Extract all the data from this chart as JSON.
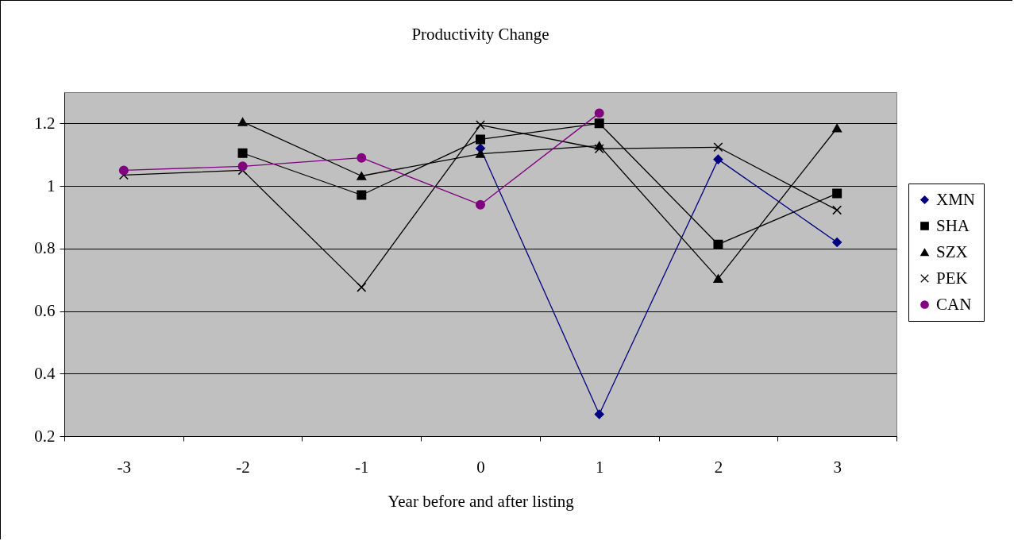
{
  "chart_data": {
    "type": "line",
    "title": "Productivity Change",
    "xlabel": "Year before and after listing",
    "categories": [
      "-3",
      "-2",
      "-1",
      "0",
      "1",
      "2",
      "3"
    ],
    "series": [
      {
        "name": "XMN",
        "color": "#000080",
        "marker": "diamond",
        "values": [
          null,
          null,
          null,
          1.12,
          0.27,
          1.085,
          0.82
        ]
      },
      {
        "name": "SHA",
        "color": "#000000",
        "marker": "square",
        "values": [
          null,
          1.105,
          0.971,
          1.149,
          1.2,
          0.813,
          0.976
        ]
      },
      {
        "name": "SZX",
        "color": "#000000",
        "marker": "triangle",
        "values": [
          null,
          1.205,
          1.032,
          1.103,
          1.129,
          0.704,
          1.185
        ]
      },
      {
        "name": "PEK",
        "color": "#000000",
        "marker": "cross",
        "values": [
          1.035,
          1.05,
          0.676,
          1.195,
          1.119,
          1.124,
          0.923
        ]
      },
      {
        "name": "CAN",
        "color": "#800080",
        "marker": "circle",
        "values": [
          1.05,
          1.063,
          1.09,
          0.94,
          1.233,
          null,
          null
        ]
      }
    ],
    "ylim": [
      0.2,
      1.3
    ],
    "yticks": [
      0.2,
      0.4,
      0.6,
      0.8,
      1,
      1.2
    ],
    "grid": "y",
    "legend": "right",
    "line_style": "solid"
  }
}
